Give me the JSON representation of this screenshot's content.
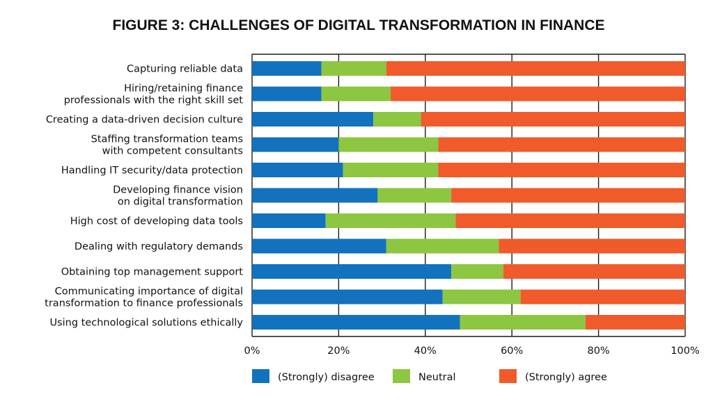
{
  "chart_data": {
    "type": "bar",
    "orientation": "horizontal",
    "stacked": true,
    "title": "FIGURE 3: CHALLENGES OF DIGITAL TRANSFORMATION IN FINANCE",
    "xlabel": "",
    "ylabel": "",
    "xlim": [
      0,
      100
    ],
    "x_ticks": [
      "0%",
      "20%",
      "40%",
      "60%",
      "80%",
      "100%"
    ],
    "grid": "vertical",
    "legend_position": "bottom",
    "categories": [
      [
        "Capturing reliable data"
      ],
      [
        "Hiring/retaining finance",
        "professionals with the right skill set"
      ],
      [
        "Creating a data-driven decision culture"
      ],
      [
        "Staffing transformation teams",
        "with competent consultants"
      ],
      [
        "Handling IT security/data protection"
      ],
      [
        "Developing finance vision",
        "on digital transformation"
      ],
      [
        "High cost of developing data tools"
      ],
      [
        "Dealing with regulatory demands"
      ],
      [
        "Obtaining top management support"
      ],
      [
        "Communicating importance of digital",
        "transformation to finance professionals"
      ],
      [
        "Using technological solutions ethically"
      ]
    ],
    "series": [
      {
        "name": "(Strongly) disagree",
        "color": "#1272BE",
        "values": [
          16,
          16,
          28,
          20,
          21,
          29,
          17,
          31,
          46,
          44,
          48
        ]
      },
      {
        "name": "Neutral",
        "color": "#8DC641",
        "values": [
          15,
          16,
          11,
          23,
          22,
          17,
          30,
          26,
          12,
          18,
          29
        ]
      },
      {
        "name": "(Strongly) agree",
        "color": "#F15A2B",
        "values": [
          69,
          68,
          61,
          57,
          57,
          54,
          53,
          43,
          42,
          38,
          23
        ]
      }
    ]
  }
}
